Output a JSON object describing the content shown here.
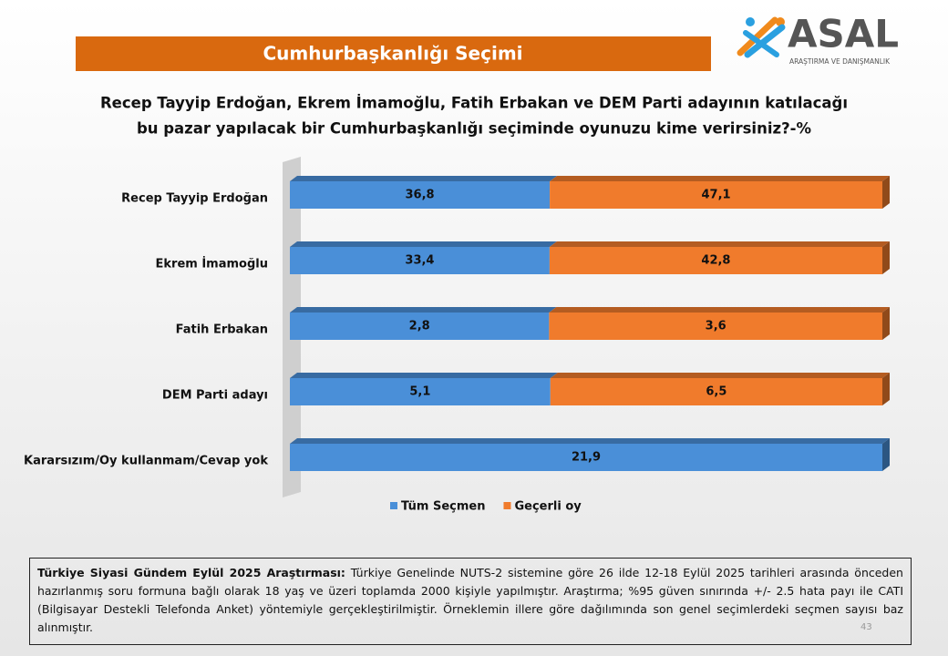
{
  "header": {
    "title": "Cumhurbaşkanlığı Seçimi"
  },
  "logo": {
    "name": "ASAL",
    "tagline": "ARAŞTIRMA VE DANIŞMANLIK"
  },
  "chart_data": {
    "type": "bar",
    "orientation": "horizontal",
    "stacked": "percent",
    "title_lines": [
      "Recep Tayyip Erdoğan, Ekrem İmamoğlu, Fatih Erbakan ve DEM Parti adayının katılacağı",
      "bu pazar yapılacak bir Cumhurbaşkanlığı seçiminde oyunuzu kime verirsiniz?-%"
    ],
    "categories": [
      "Recep Tayyip Erdoğan",
      "Ekrem İmamoğlu",
      "Fatih Erbakan",
      "DEM Parti adayı",
      "Kararsızım/Oy kullanmam/Cevap yok"
    ],
    "series": [
      {
        "name": "Tüm Seçmen",
        "color": "#4a8fd8",
        "values": [
          36.8,
          33.4,
          2.8,
          5.1,
          21.9
        ],
        "value_labels": [
          "36,8",
          "33,4",
          "2,8",
          "5,1",
          "21,9"
        ]
      },
      {
        "name": "Geçerli oy",
        "color": "#f07b2c",
        "values": [
          47.1,
          42.8,
          3.6,
          6.5,
          null
        ],
        "value_labels": [
          "47,1",
          "42,8",
          "3,6",
          "6,5",
          null
        ]
      }
    ],
    "legend": "bottom"
  },
  "footnote": {
    "bold": "Türkiye Siyasi Gündem Eylül 2025 Araştırması:",
    "text": "Türkiye Genelinde NUTS-2 sistemine göre 26 ilde 12-18 Eylül 2025 tarihleri arasında önceden hazırlanmış soru formuna bağlı olarak 18 yaş ve üzeri toplamda 2000 kişiyle yapılmıştır. Araştırma; %95 güven sınırında +/- 2.5 hata payı ile CATI (Bilgisayar Destekli Telefonda Anket) yöntemiyle gerçekleştirilmiştir. Örneklemin illere göre dağılımında son genel seçimlerdeki seçmen sayısı baz alınmıştır."
  },
  "page_number": "43"
}
